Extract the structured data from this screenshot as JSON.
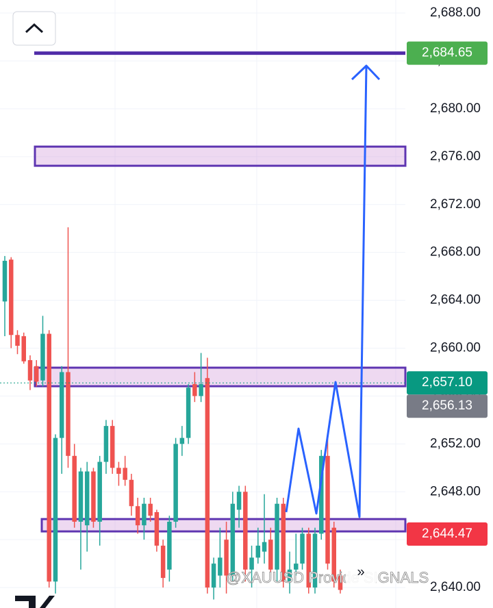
{
  "chart_data": {
    "type": "candlestick",
    "ylim": [
      2638.29,
      2689.09
    ],
    "yticks": [
      {
        "value": 2640,
        "label": "2,640.00"
      },
      {
        "value": 2644,
        "label": "2,644.00"
      },
      {
        "value": 2648,
        "label": "2,648.00"
      },
      {
        "value": 2652,
        "label": "2,652.00"
      },
      {
        "value": 2656,
        "label": "2,656.00"
      },
      {
        "value": 2660,
        "label": "2,660.00"
      },
      {
        "value": 2664,
        "label": "2,664.00"
      },
      {
        "value": 2668,
        "label": "2,668.00"
      },
      {
        "value": 2672,
        "label": "2,672.00"
      },
      {
        "value": 2676,
        "label": "2,676.00"
      },
      {
        "value": 2680,
        "label": "2,680.00"
      },
      {
        "value": 2684,
        "label": "2,684.00"
      },
      {
        "value": 2688,
        "label": "2,688.00"
      }
    ],
    "grid": true,
    "up_color": "#26a69a",
    "down_color": "#ef5350",
    "open": [
      2663.9,
      2667.4,
      2661.1,
      2661.0,
      2659.0,
      2658.5,
      2657.3,
      2661.2,
      2640.5,
      2652.5,
      2658.0,
      2651.0,
      2645.5,
      2645.2,
      2649.7,
      2645.5,
      2650.5,
      2653.5,
      2650.0,
      2650.0,
      2649.0,
      2646.8,
      2645.2,
      2647.0,
      2646.3,
      2643.5,
      2641.5,
      2645.5,
      2652.0,
      2652.5,
      2657.0,
      2656.0,
      2657.5,
      2640.0,
      2641.0,
      2644.0,
      2641.0,
      2646.5,
      2648.0,
      2641.5,
      2642.5,
      2643.0,
      2644.0,
      2641.5,
      2647.0,
      2640.5,
      2641.5,
      2642.0,
      2644.5,
      2640.0,
      2644.5,
      2651.0,
      2645.0,
      2641.0
    ],
    "high": [
      2667.7,
      2667.6,
      2661.5,
      2661.3,
      2659.4,
      2659.0,
      2662.7,
      2661.5,
      2652.8,
      2658.5,
      2670.1,
      2652.0,
      2650.0,
      2650.5,
      2650.0,
      2651.0,
      2654.0,
      2654.0,
      2650.5,
      2651.0,
      2649.5,
      2647.5,
      2647.5,
      2647.5,
      2646.5,
      2644.0,
      2646.0,
      2652.5,
      2653.5,
      2657.0,
      2658.0,
      2659.6,
      2659.2,
      2642.5,
      2645.0,
      2645.5,
      2648.0,
      2648.5,
      2648.5,
      2643.5,
      2645.0,
      2647.8,
      2645.0,
      2647.5,
      2647.5,
      2643.0,
      2644.5,
      2645.0,
      2645.0,
      2645.0,
      2651.5,
      2652.5,
      2645.5,
      2641.5
    ],
    "low": [
      2661.0,
      2660.0,
      2659.5,
      2658.7,
      2656.5,
      2656.8,
      2656.8,
      2640.0,
      2639.5,
      2649.5,
      2650.0,
      2645.0,
      2641.5,
      2643.0,
      2645.0,
      2643.5,
      2649.5,
      2649.5,
      2648.5,
      2648.5,
      2646.0,
      2644.5,
      2644.0,
      2645.5,
      2643.0,
      2640.0,
      2640.5,
      2645.0,
      2651.0,
      2652.0,
      2655.5,
      2655.5,
      2639.5,
      2639.0,
      2640.0,
      2639.5,
      2640.5,
      2645.0,
      2640.5,
      2640.0,
      2642.0,
      2642.0,
      2641.0,
      2640.5,
      2640.0,
      2639.5,
      2641.0,
      2641.5,
      2639.5,
      2639.5,
      2644.0,
      2641.5,
      2640.0,
      2639.5
    ],
    "close": [
      2667.3,
      2661.1,
      2660.2,
      2658.9,
      2657.3,
      2657.2,
      2661.2,
      2640.5,
      2652.5,
      2658.0,
      2651.0,
      2645.5,
      2649.7,
      2649.7,
      2645.5,
      2650.5,
      2653.5,
      2650.0,
      2649.5,
      2649.0,
      2646.8,
      2645.2,
      2647.0,
      2646.0,
      2643.5,
      2640.8,
      2645.5,
      2652.0,
      2652.5,
      2656.7,
      2656.0,
      2657.0,
      2640.0,
      2642.0,
      2642.5,
      2641.0,
      2647.0,
      2648.0,
      2641.5,
      2642.5,
      2643.5,
      2643.8,
      2641.5,
      2647.0,
      2640.5,
      2641.5,
      2642.0,
      2644.5,
      2640.0,
      2644.5,
      2651.0,
      2642.0,
      2640.5,
      2639.8
    ],
    "target_line": 2684.65,
    "zones": [
      {
        "from": 2675.24,
        "to": 2676.84
      },
      {
        "from": 2656.82,
        "to": 2658.37
      },
      {
        "from": 2644.69,
        "to": 2645.72
      }
    ],
    "price_labels": [
      {
        "value": 2684.65,
        "label": "2,684.65",
        "color": "#4caf50"
      },
      {
        "value": 2657.1,
        "label": "2,657.10",
        "color": "#089981"
      },
      {
        "value": 2656.13,
        "label": "2,656.13",
        "color": "#787b86"
      },
      {
        "value": 2644.47,
        "label": "2,644.47",
        "color": "#f23645"
      }
    ],
    "watermark": "@XAUUSD Provide SIGNALS"
  }
}
